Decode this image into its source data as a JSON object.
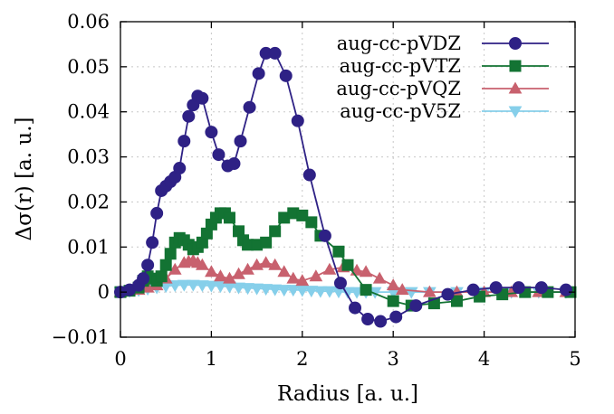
{
  "chart_data": {
    "type": "line",
    "xlabel": "Radius [a. u.]",
    "ylabel": "Δσ(r) [a. u.]",
    "xlim": [
      0,
      5
    ],
    "ylim": [
      -0.01,
      0.06
    ],
    "x_ticks": [
      "0",
      "1",
      "2",
      "3",
      "4",
      "5"
    ],
    "y_ticks": [
      "−0.01",
      "0",
      "0.01",
      "0.02",
      "0.03",
      "0.04",
      "0.05",
      "0.06"
    ],
    "grid": true,
    "legend_position": "top-right",
    "series": [
      {
        "name": "aug-cc-pVDZ",
        "color": "#2e2185",
        "marker": "circle",
        "x": [
          0,
          0.1,
          0.2,
          0.25,
          0.3,
          0.35,
          0.4,
          0.45,
          0.5,
          0.55,
          0.6,
          0.65,
          0.7,
          0.75,
          0.8,
          0.85,
          0.9,
          1.0,
          1.08,
          1.18,
          1.25,
          1.32,
          1.42,
          1.52,
          1.6,
          1.7,
          1.82,
          1.95,
          2.08,
          2.25,
          2.42,
          2.58,
          2.72,
          2.86,
          3.03,
          3.25,
          3.6,
          3.88,
          4.13,
          4.38,
          4.63,
          4.9
        ],
        "values": [
          0,
          0.0005,
          0.0015,
          0.003,
          0.006,
          0.011,
          0.0175,
          0.0225,
          0.0235,
          0.0245,
          0.0255,
          0.0275,
          0.0335,
          0.039,
          0.0415,
          0.0435,
          0.043,
          0.0355,
          0.0305,
          0.028,
          0.0285,
          0.0335,
          0.041,
          0.0485,
          0.053,
          0.053,
          0.048,
          0.038,
          0.026,
          0.0125,
          0.002,
          -0.0035,
          -0.006,
          -0.0065,
          -0.0055,
          -0.003,
          -0.0005,
          0.0005,
          0.001,
          0.001,
          0.001,
          0.0005
        ]
      },
      {
        "name": "aug-cc-pVTZ",
        "color": "#137333",
        "marker": "square",
        "x": [
          0,
          0.1,
          0.2,
          0.25,
          0.3,
          0.35,
          0.4,
          0.45,
          0.5,
          0.55,
          0.6,
          0.65,
          0.7,
          0.75,
          0.8,
          0.85,
          0.9,
          0.95,
          1.0,
          1.05,
          1.1,
          1.15,
          1.2,
          1.3,
          1.35,
          1.4,
          1.5,
          1.6,
          1.7,
          1.8,
          1.9,
          2.0,
          2.1,
          2.2,
          2.4,
          2.5,
          2.7,
          3.0,
          3.2,
          3.45,
          3.7,
          3.95,
          4.2,
          4.45,
          4.7,
          4.95
        ],
        "values": [
          0,
          0.0003,
          0.001,
          0.0025,
          0.0035,
          0.003,
          0.0025,
          0.0035,
          0.006,
          0.0085,
          0.011,
          0.012,
          0.0115,
          0.0105,
          0.0095,
          0.01,
          0.011,
          0.013,
          0.015,
          0.0165,
          0.0175,
          0.0175,
          0.0165,
          0.0135,
          0.0115,
          0.0105,
          0.0105,
          0.011,
          0.0135,
          0.0165,
          0.0175,
          0.017,
          0.0155,
          0.0125,
          0.009,
          0.006,
          0.0005,
          -0.002,
          -0.003,
          -0.0025,
          -0.002,
          -0.001,
          -0.0005,
          0,
          0,
          0
        ]
      },
      {
        "name": "aug-cc-pVQZ",
        "color": "#c8616e",
        "marker": "triangle-up",
        "x": [
          0,
          0.2,
          0.3,
          0.4,
          0.5,
          0.6,
          0.7,
          0.75,
          0.8,
          0.85,
          0.9,
          1.0,
          1.1,
          1.2,
          1.3,
          1.4,
          1.5,
          1.6,
          1.7,
          1.8,
          1.9,
          2.0,
          2.15,
          2.3,
          2.45,
          2.6,
          2.7,
          2.85,
          3.0,
          3.1,
          3.4,
          3.7,
          4.0,
          4.3,
          4.6,
          4.9
        ],
        "values": [
          0,
          0.0005,
          0.001,
          0.0015,
          0.003,
          0.005,
          0.0065,
          0.0068,
          0.007,
          0.0065,
          0.006,
          0.0045,
          0.0035,
          0.003,
          0.004,
          0.005,
          0.006,
          0.0065,
          0.006,
          0.0045,
          0.003,
          0.0025,
          0.0035,
          0.005,
          0.0055,
          0.0048,
          0.0045,
          0.003,
          0.0015,
          0.0005,
          0,
          0,
          0,
          0,
          0,
          0
        ]
      },
      {
        "name": "aug-cc-pV5Z",
        "color": "#86cfea",
        "marker": "triangle-down",
        "x": [
          0,
          0.1,
          0.2,
          0.3,
          0.4,
          0.5,
          0.6,
          0.7,
          0.8,
          0.9,
          1.0,
          1.1,
          1.2,
          1.3,
          1.4,
          1.5,
          1.6,
          1.7,
          1.8,
          1.9,
          2.0,
          2.1,
          2.2,
          2.3,
          2.4,
          2.5,
          2.6,
          2.7,
          2.8,
          3.0,
          3.2,
          3.4,
          3.7,
          4.0,
          4.3,
          4.6,
          4.9
        ],
        "values": [
          0,
          0.0002,
          0.0004,
          0.0007,
          0.001,
          0.0013,
          0.0015,
          0.0016,
          0.0016,
          0.0015,
          0.0014,
          0.0013,
          0.0012,
          0.001,
          0.0009,
          0.0008,
          0.0007,
          0.0006,
          0.0005,
          0.0005,
          0.0004,
          0.0003,
          0.0002,
          0.0002,
          0.0001,
          0,
          0,
          0,
          0,
          0,
          0,
          0,
          0,
          0,
          0,
          0,
          0
        ]
      }
    ]
  }
}
